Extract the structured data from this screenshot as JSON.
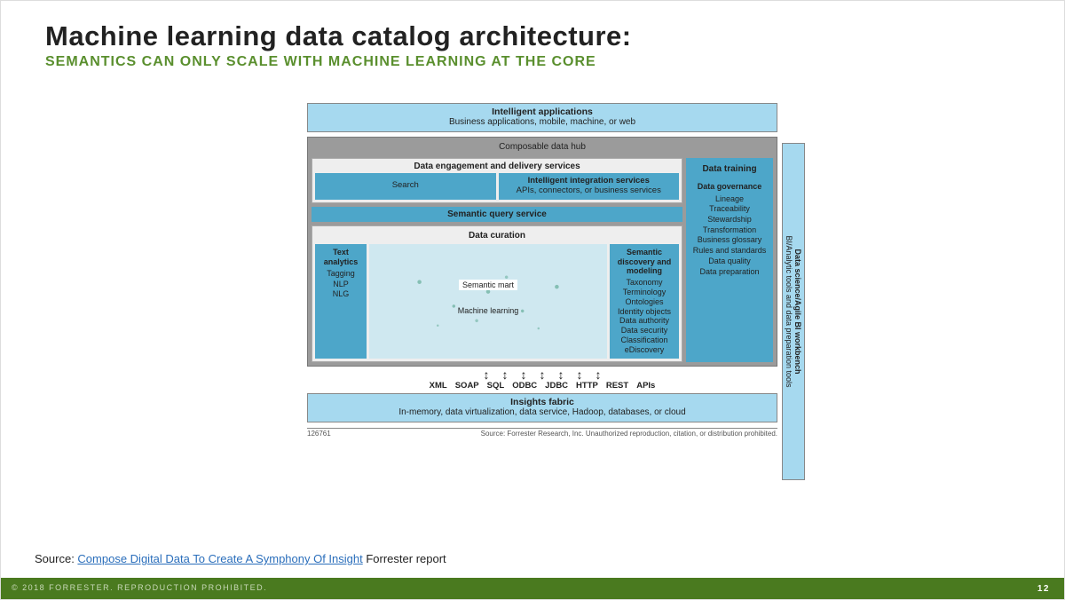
{
  "title": "Machine learning data catalog architecture:",
  "subtitle": "SEMANTICS CAN ONLY SCALE WITH MACHINE LEARNING AT THE CORE",
  "colors": {
    "light_blue": "#a6d9ef",
    "mid_blue": "#4da6c9",
    "pale_blue": "#cfe8f0",
    "grey_hub": "#9b9b9b",
    "panel_grey": "#eee",
    "green_accent": "#5a8f2e",
    "footer_green": "#4a7a1f"
  },
  "top": {
    "title": "Intelligent applications",
    "sub": "Business applications, mobile, machine, or web"
  },
  "hub": {
    "title": "Composable data hub"
  },
  "engagement": {
    "title": "Data engagement and delivery services",
    "search": "Search",
    "integration_title": "Intelligent integration services",
    "integration_sub": "APIs, connectors, or business services"
  },
  "sqs": "Semantic query service",
  "curation": {
    "title": "Data curation",
    "text_analytics": {
      "title": "Text analytics",
      "items": "Tagging\nNLP\nNLG"
    },
    "mart": {
      "label1": "Semantic mart",
      "label2": "Machine learning"
    },
    "semantic": {
      "title": "Semantic discovery and modeling",
      "items": "Taxonomy\nTerminology\nOntologies\nIdentity objects\nData authority\nData security\nClassification\neDiscovery"
    }
  },
  "training": {
    "header": "Data training",
    "gov_title": "Data governance",
    "items": "Lineage\nTraceability\nStewardship\nTransformation\nBusiness glossary\nRules and standards\nData quality\nData preparation"
  },
  "side": {
    "line1": "Data science/Agile BI workbench",
    "line2": "BI/Analytic tools and data preparation tools"
  },
  "protocols": [
    "XML",
    "SOAP",
    "SQL",
    "ODBC",
    "JDBC",
    "HTTP",
    "REST",
    "APIs"
  ],
  "insights": {
    "title": "Insights fabric",
    "sub": "In-memory, data virtualization, data service, Hadoop, databases, or cloud"
  },
  "fignum": "126761",
  "figsource": "Source: Forrester Research, Inc. Unauthorized reproduction, citation, or distribution prohibited.",
  "source_prefix": "Source: ",
  "source_link": "Compose Digital Data To Create A Symphony Of Insight",
  "source_suffix": " Forrester report",
  "footer": "© 2018 FORRESTER. REPRODUCTION PROHIBITED.",
  "pagenum": "12"
}
